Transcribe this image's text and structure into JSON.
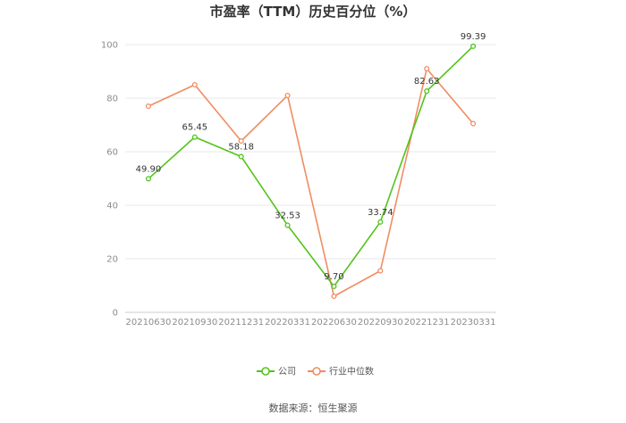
{
  "chart_data": {
    "type": "line",
    "title": "市盈率（TTM）历史百分位（%）",
    "categories": [
      "20210630",
      "20210930",
      "20211231",
      "20220331",
      "20220630",
      "20220930",
      "20221231",
      "20230331"
    ],
    "ylim": [
      0,
      100
    ],
    "yticks": [
      0,
      20,
      40,
      60,
      80,
      100
    ],
    "grid": true,
    "legend_position": "bottom-center",
    "series": [
      {
        "name": "公司",
        "color": "#52c41a",
        "values": [
          49.9,
          65.45,
          58.18,
          32.53,
          9.7,
          33.74,
          82.63,
          99.39
        ],
        "labels": [
          "49.90",
          "65.45",
          "58.18",
          "32.53",
          "9.70",
          "33.74",
          "82.63",
          "99.39"
        ]
      },
      {
        "name": "行业中位数",
        "color": "#f08c62",
        "values": [
          77,
          85,
          64,
          81,
          6,
          15.5,
          91,
          70.5
        ]
      }
    ]
  },
  "source": "数据来源：恒生聚源"
}
